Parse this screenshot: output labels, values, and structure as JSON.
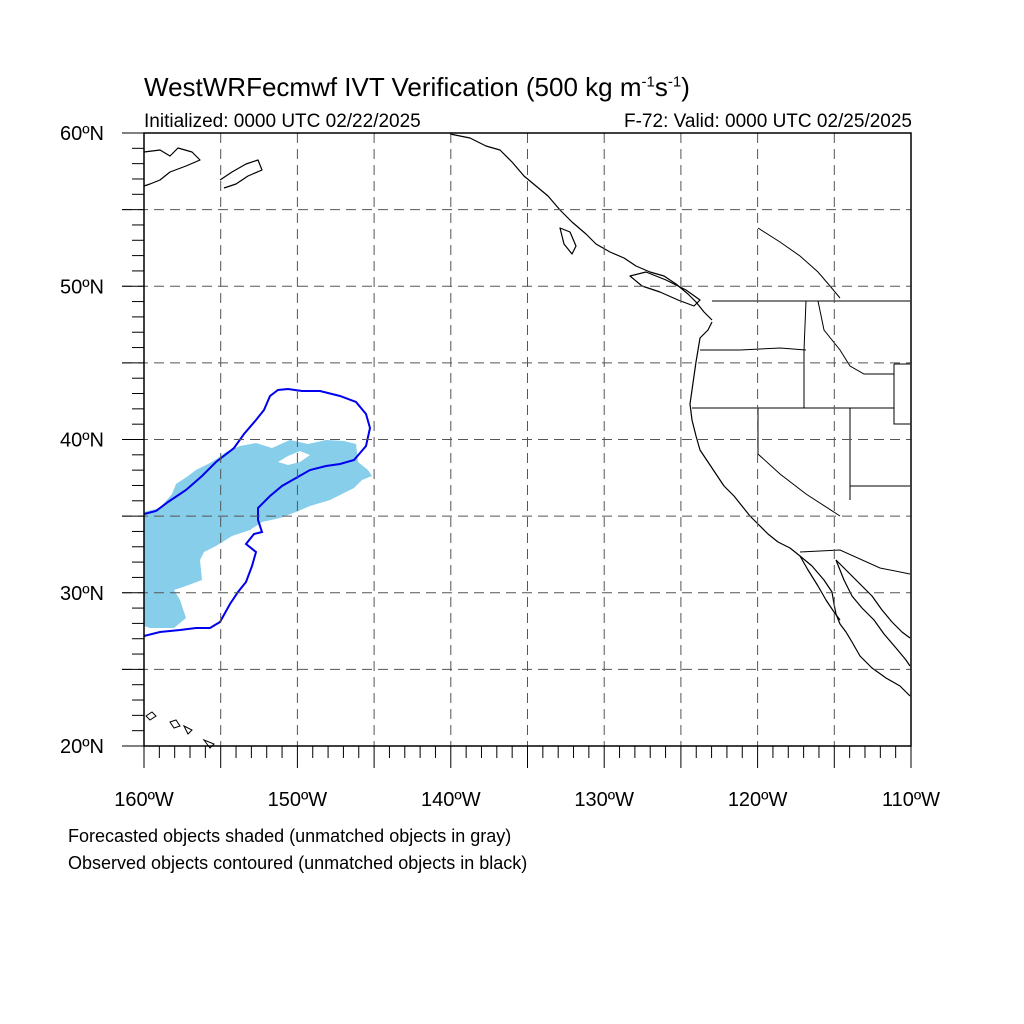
{
  "title": {
    "main": "WestWRFecmwf IVT Verification (500 kg m",
    "exp1": "-1",
    "mid": "s",
    "exp2": "-1",
    "close": ")"
  },
  "subtitle": {
    "initialized": "Initialized: 0000 UTC 02/22/2025",
    "valid": "F-72: Valid: 0000 UTC 02/25/2025"
  },
  "map": {
    "projection": "cylindrical equidistant",
    "lon_range": [
      -160,
      -110
    ],
    "lat_range": [
      20,
      60
    ],
    "gridlines": "dashed every 5 degrees",
    "lat_labels": [
      {
        "lat": 60,
        "label": "60ºN"
      },
      {
        "lat": 50,
        "label": "50ºN"
      },
      {
        "lat": 40,
        "label": "40ºN"
      },
      {
        "lat": 30,
        "label": "30ºN"
      },
      {
        "lat": 20,
        "label": "20ºN"
      }
    ],
    "lon_labels": [
      {
        "lon": -160,
        "label": "160ºW"
      },
      {
        "lon": -150,
        "label": "150ºW"
      },
      {
        "lon": -140,
        "label": "140ºW"
      },
      {
        "lon": -130,
        "label": "130ºW"
      },
      {
        "lon": -120,
        "label": "120ºW"
      },
      {
        "lon": -110,
        "label": "110ºW"
      }
    ],
    "forecast_object_color": "#87ceeb",
    "observed_contour_color": "#0000ee",
    "coastline_color": "#000000"
  },
  "notes": {
    "line1": "Forecasted objects shaded (unmatched objects in gray)",
    "line2": "Observed objects contoured (unmatched objects in black)"
  }
}
